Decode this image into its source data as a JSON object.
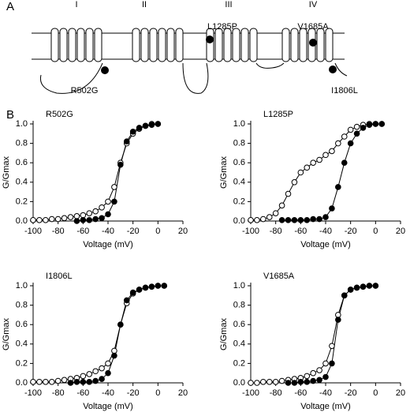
{
  "diagram": {
    "panel_labels": [
      "A",
      "B"
    ],
    "domains": [
      "I",
      "II",
      "III",
      "IV"
    ],
    "mutations": [
      "R502G",
      "L1285P",
      "V1685A",
      "I1806L"
    ]
  },
  "chart_data": [
    {
      "type": "line",
      "title": "R502G",
      "xlabel": "Voltage (mV)",
      "ylabel": "G/Gmax",
      "x": [
        -100,
        -95,
        -90,
        -85,
        -80,
        -75,
        -70,
        -65,
        -60,
        -55,
        -50,
        -45,
        -40,
        -35,
        -30,
        -25,
        -20,
        -15,
        -10,
        -5,
        0
      ],
      "series": [
        {
          "color": "#000000",
          "marker_fill": "#ffffff",
          "values": [
            0.01,
            0.01,
            0.01,
            0.02,
            0.02,
            0.03,
            0.04,
            0.05,
            0.06,
            0.08,
            0.1,
            0.14,
            0.2,
            0.35,
            0.6,
            0.8,
            0.9,
            0.95,
            0.98,
            1.0,
            1.0
          ]
        },
        {
          "color": "#000000",
          "marker_fill": "#000000",
          "values": [
            null,
            null,
            null,
            null,
            null,
            null,
            null,
            0.0,
            0.01,
            0.01,
            0.02,
            0.03,
            0.07,
            0.2,
            0.58,
            0.82,
            0.92,
            0.96,
            0.98,
            0.99,
            1.0
          ]
        }
      ],
      "xlim": [
        -100,
        20
      ],
      "xticks": [
        -100,
        -80,
        -60,
        -40,
        -20,
        0,
        20
      ],
      "ylim": [
        0,
        1
      ],
      "yticks": [
        {
          "value": 0,
          "label": "0.0"
        },
        {
          "value": 0.2,
          "label": "0.2"
        },
        {
          "value": 0.4,
          "label": "0.4"
        },
        {
          "value": 0.6,
          "label": "0.6"
        },
        {
          "value": 0.8,
          "label": "0.8"
        },
        {
          "value": 1,
          "label": "1.0"
        }
      ]
    },
    {
      "type": "line",
      "title": "L1285P",
      "xlabel": "Voltage (mV)",
      "ylabel": "G/Gmax",
      "x": [
        -100,
        -95,
        -90,
        -85,
        -80,
        -75,
        -70,
        -65,
        -60,
        -55,
        -50,
        -45,
        -40,
        -35,
        -30,
        -25,
        -20,
        -15,
        -10,
        -5,
        0,
        5
      ],
      "series": [
        {
          "color": "#000000",
          "marker_fill": "#ffffff",
          "values": [
            0.01,
            0.01,
            0.02,
            0.04,
            0.08,
            0.16,
            0.28,
            0.4,
            0.5,
            0.55,
            0.6,
            0.63,
            0.68,
            0.72,
            0.8,
            0.87,
            0.94,
            0.97,
            0.99,
            1.0,
            1.0,
            1.0
          ]
        },
        {
          "color": "#000000",
          "marker_fill": "#000000",
          "values": [
            null,
            null,
            null,
            null,
            null,
            0.01,
            0.01,
            0.01,
            0.01,
            0.01,
            0.02,
            0.02,
            0.04,
            0.13,
            0.35,
            0.6,
            0.8,
            0.9,
            0.96,
            0.99,
            1.0,
            1.0
          ]
        }
      ],
      "xlim": [
        -100,
        20
      ],
      "xticks": [
        -100,
        -80,
        -60,
        -40,
        -20,
        0,
        20
      ],
      "ylim": [
        0,
        1
      ],
      "yticks": [
        {
          "value": 0,
          "label": "0.0"
        },
        {
          "value": 0.2,
          "label": "0.2"
        },
        {
          "value": 0.4,
          "label": "0.4"
        },
        {
          "value": 0.6,
          "label": "0.6"
        },
        {
          "value": 0.8,
          "label": "0.8"
        },
        {
          "value": 1,
          "label": "1.0"
        }
      ]
    },
    {
      "type": "line",
      "title": "I1806L",
      "xlabel": "Voltage (mV)",
      "ylabel": "G/Gmax",
      "x": [
        -100,
        -95,
        -90,
        -85,
        -80,
        -75,
        -70,
        -65,
        -60,
        -55,
        -50,
        -45,
        -40,
        -35,
        -30,
        -25,
        -20,
        -15,
        -10,
        -5,
        0,
        5
      ],
      "series": [
        {
          "color": "#000000",
          "marker_fill": "#ffffff",
          "values": [
            0.01,
            0.01,
            0.01,
            0.01,
            0.02,
            0.03,
            0.04,
            0.05,
            0.07,
            0.09,
            0.12,
            0.15,
            0.2,
            0.33,
            0.6,
            0.82,
            0.92,
            0.96,
            0.98,
            0.99,
            1.0,
            1.0
          ]
        },
        {
          "color": "#000000",
          "marker_fill": "#000000",
          "values": [
            null,
            null,
            null,
            null,
            null,
            null,
            0.0,
            0.01,
            0.01,
            0.01,
            0.02,
            0.04,
            0.1,
            0.28,
            0.6,
            0.85,
            0.93,
            0.96,
            0.98,
            0.99,
            1.0,
            1.0
          ]
        }
      ],
      "xlim": [
        -100,
        20
      ],
      "xticks": [
        -100,
        -80,
        -60,
        -40,
        -20,
        0,
        20
      ],
      "ylim": [
        0,
        1
      ],
      "yticks": [
        {
          "value": 0,
          "label": "0.0"
        },
        {
          "value": 0.2,
          "label": "0.2"
        },
        {
          "value": 0.4,
          "label": "0.4"
        },
        {
          "value": 0.6,
          "label": "0.6"
        },
        {
          "value": 0.8,
          "label": "0.8"
        },
        {
          "value": 1,
          "label": "1.0"
        }
      ]
    },
    {
      "type": "line",
      "title": "V1685A",
      "xlabel": "Voltage (mV)",
      "ylabel": "G/Gmax",
      "x": [
        -100,
        -95,
        -90,
        -85,
        -80,
        -75,
        -70,
        -65,
        -60,
        -55,
        -50,
        -45,
        -40,
        -35,
        -30,
        -25,
        -20,
        -15,
        -10,
        -5,
        0
      ],
      "series": [
        {
          "color": "#000000",
          "marker_fill": "#ffffff",
          "values": [
            0.0,
            0.0,
            0.01,
            0.01,
            0.01,
            0.02,
            0.03,
            0.04,
            0.05,
            0.07,
            0.1,
            0.13,
            0.2,
            0.38,
            0.7,
            0.9,
            0.96,
            0.98,
            0.99,
            1.0,
            1.0
          ]
        },
        {
          "color": "#000000",
          "marker_fill": "#000000",
          "values": [
            null,
            null,
            null,
            null,
            null,
            null,
            0.0,
            0.0,
            0.01,
            0.01,
            0.02,
            0.03,
            0.06,
            0.2,
            0.65,
            0.9,
            0.96,
            0.98,
            0.99,
            1.0,
            1.0
          ]
        }
      ],
      "xlim": [
        -100,
        20
      ],
      "xticks": [
        -100,
        -80,
        -60,
        -40,
        -20,
        0,
        20
      ],
      "ylim": [
        0,
        1
      ],
      "yticks": [
        {
          "value": 0,
          "label": "0.0"
        },
        {
          "value": 0.2,
          "label": "0.2"
        },
        {
          "value": 0.4,
          "label": "0.4"
        },
        {
          "value": 0.6,
          "label": "0.6"
        },
        {
          "value": 0.8,
          "label": "0.8"
        },
        {
          "value": 1,
          "label": "1.0"
        }
      ]
    }
  ]
}
